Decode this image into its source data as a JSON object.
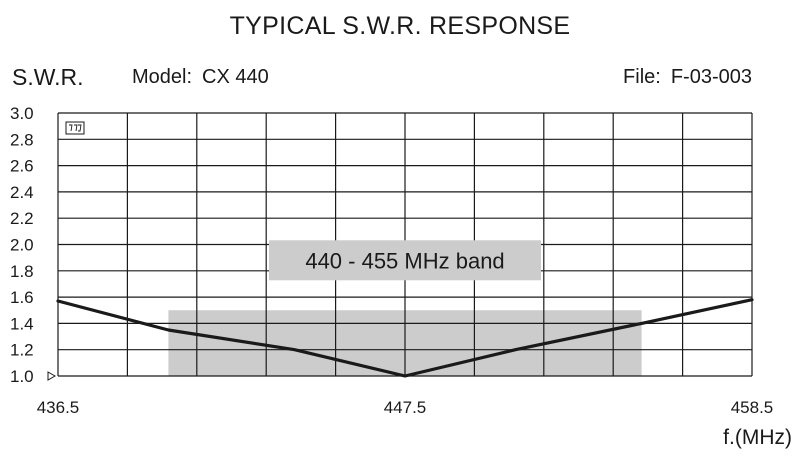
{
  "header": {
    "title": "TYPICAL S.W.R. RESPONSE",
    "model_label": "Model:",
    "model_value": "CX 440",
    "file_label": "File:",
    "file_value": "F-03-003"
  },
  "chart_data": {
    "type": "line",
    "ylabel": "S.W.R.",
    "xlabel": "f.(MHz)",
    "xlim": [
      436.5,
      458.5
    ],
    "ylim": [
      1.0,
      3.0
    ],
    "x_ticks": [
      436.5,
      447.5,
      458.5
    ],
    "y_ticks": [
      "1.0",
      "1.2",
      "1.4",
      "1.6",
      "1.8",
      "2.0",
      "2.2",
      "2.4",
      "2.6",
      "2.8",
      "3.0"
    ],
    "grid": true,
    "series": [
      {
        "x": [
          436.5,
          440.0,
          444.0,
          447.5,
          451.0,
          455.0,
          458.5
        ],
        "y": [
          1.57,
          1.35,
          1.2,
          1.0,
          1.2,
          1.4,
          1.58
        ]
      }
    ],
    "band": {
      "label": "440 - 455 MHz band",
      "x_start": 440.0,
      "x_end": 455.0,
      "y_top": 1.5,
      "color": "#cccccc"
    },
    "line_color": "#1a1a1a",
    "grid_color": "#1a1a1a"
  }
}
